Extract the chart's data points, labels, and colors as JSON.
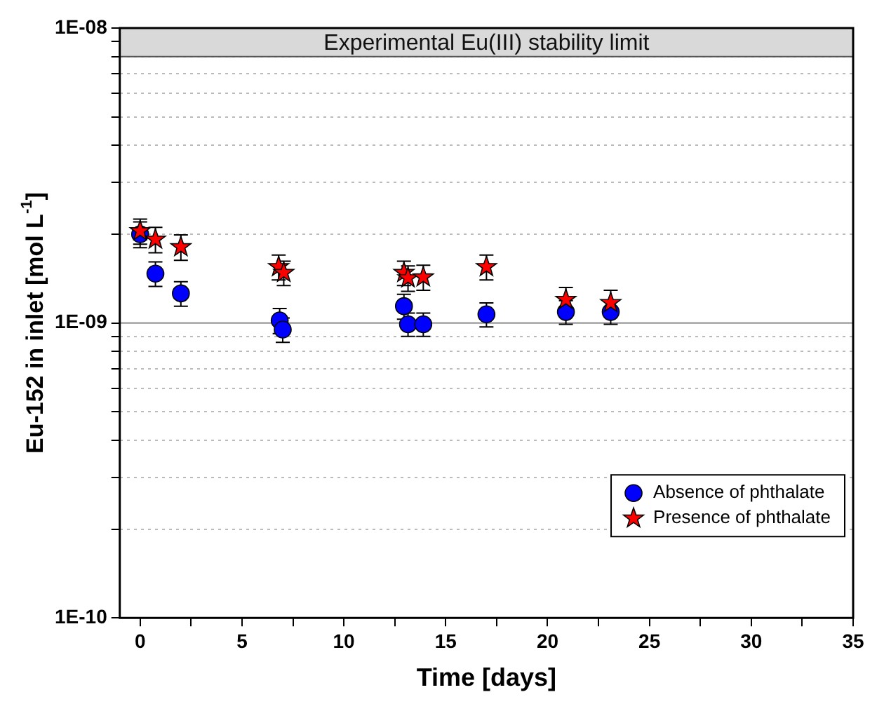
{
  "chart_data": {
    "type": "scatter",
    "xlabel": "Time [days]",
    "ylabel": "Eu-152 in inlet [mol L$^{-1}$]",
    "log": "y",
    "grid": "y",
    "legend": "bottom right",
    "xlim": [
      -1,
      35
    ],
    "xticks": [
      0,
      {
        "value": 2.5,
        "label": null
      },
      5,
      {
        "value": 7.5,
        "label": null
      },
      10,
      {
        "value": 12.5,
        "label": null
      },
      15,
      {
        "value": 17.5,
        "label": null
      },
      20,
      {
        "value": 22.5,
        "label": null
      },
      25,
      {
        "value": 27.5,
        "label": null
      },
      30,
      {
        "value": 32.5,
        "label": null
      },
      35
    ],
    "ylim": [
      1e-10,
      1e-08
    ],
    "yticks": [
      {
        "value": 1e-10,
        "label": "1E-10"
      },
      {
        "value": 2e-10,
        "label": null
      },
      {
        "value": 3e-10,
        "label": null
      },
      {
        "value": 4e-10,
        "label": null
      },
      {
        "value": 5e-10,
        "label": null
      },
      {
        "value": 6e-10,
        "label": null
      },
      {
        "value": 7e-10,
        "label": null
      },
      {
        "value": 8e-10,
        "label": null
      },
      {
        "value": 9e-10,
        "label": null
      },
      {
        "value": 1e-09,
        "label": "1E-09"
      },
      {
        "value": 2e-09,
        "label": null
      },
      {
        "value": 3e-09,
        "label": null
      },
      {
        "value": 4e-09,
        "label": null
      },
      {
        "value": 5e-09,
        "label": null
      },
      {
        "value": 6e-09,
        "label": null
      },
      {
        "value": 7e-09,
        "label": null
      },
      {
        "value": 8e-09,
        "label": null
      },
      {
        "value": 9e-09,
        "label": null
      },
      {
        "value": 1e-08,
        "label": "1E-08"
      }
    ],
    "ref_lines": [
      {
        "axis": "y",
        "value": 1e-09,
        "color": "#999999"
      }
    ],
    "bands": [
      {
        "axis": "y",
        "from": 8e-09,
        "to": 1e-08,
        "label": "Experimental Eu(III) stability limit",
        "color": "#d9d9d9"
      }
    ],
    "series": [
      {
        "name": "Absence of phthalate",
        "color": "#0000ff",
        "marker": "circle",
        "x": [
          0,
          0.75,
          2,
          6.85,
          7,
          12.95,
          13.15,
          13.9,
          17,
          20.9,
          23.1
        ],
        "values": [
          2e-09,
          1.47e-09,
          1.26e-09,
          1.02e-09,
          9.5e-10,
          1.14e-09,
          9.9e-10,
          9.9e-10,
          1.07e-09,
          1.09e-09,
          1.09e-09
        ],
        "errors": [
          2e-10,
          1.4e-10,
          1.2e-10,
          1e-10,
          9e-11,
          1.1e-10,
          9e-11,
          9e-11,
          1e-10,
          1e-10,
          1e-10
        ]
      },
      {
        "name": "Presence of phthalate",
        "color": "#ff0000",
        "marker": "star",
        "x": [
          0,
          0.75,
          2,
          6.8,
          7.05,
          12.95,
          13.15,
          13.9,
          17,
          20.9,
          23.1
        ],
        "values": [
          2.05e-09,
          1.92e-09,
          1.81e-09,
          1.55e-09,
          1.48e-09,
          1.48e-09,
          1.42e-09,
          1.43e-09,
          1.55e-09,
          1.2e-09,
          1.17e-09
        ],
        "errors": [
          2e-10,
          1.9e-10,
          1.8e-10,
          1.5e-10,
          1.4e-10,
          1.4e-10,
          1.4e-10,
          1.4e-10,
          1.5e-10,
          1.2e-10,
          1.2e-10
        ]
      }
    ]
  }
}
